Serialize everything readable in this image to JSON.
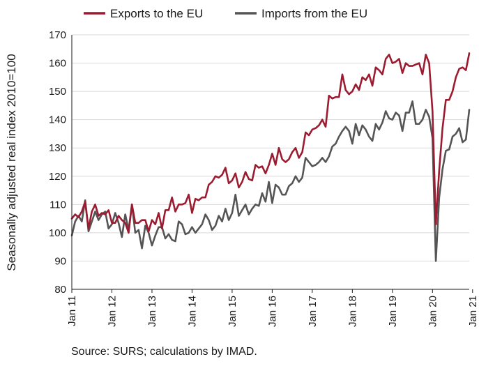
{
  "chart_data": {
    "type": "line",
    "ylabel": "Seasonally adjusted real index 2010=100",
    "xlabel": "",
    "ylim": [
      80,
      170
    ],
    "yticks": [
      80,
      90,
      100,
      110,
      120,
      130,
      140,
      150,
      160,
      170
    ],
    "x_tick_labels": [
      "Jan 11",
      "Jan 12",
      "Jan 13",
      "Jan 14",
      "Jan 15",
      "Jan 16",
      "Jan 17",
      "Jan 18",
      "Jan 19",
      "Jan 20",
      "Jan 21"
    ],
    "x_start": "2011-01",
    "frequency": "monthly",
    "legend_position": "top",
    "series": [
      {
        "name": "Exports to the EU",
        "color": "#9b1c31",
        "values": [
          105,
          106.5,
          105.5,
          107.5,
          111,
          101.5,
          107.5,
          110,
          106,
          107,
          106.5,
          108,
          103.5,
          103.5,
          106,
          104.5,
          103.5,
          100,
          110,
          103.5,
          103.5,
          104.5,
          104.5,
          100.5,
          104.5,
          103,
          107,
          101.5,
          108,
          108,
          112.5,
          107.5,
          110,
          110,
          110.5,
          113.5,
          107,
          112,
          111.5,
          112.5,
          112.5,
          117,
          118,
          120,
          119.5,
          120.5,
          123,
          117.5,
          118.5,
          121,
          116,
          118,
          121.5,
          119,
          118.5,
          124,
          123,
          123.5,
          121,
          124,
          128,
          124,
          130,
          126,
          125,
          126,
          128.5,
          130,
          126.5,
          128.5,
          135.5,
          134.5,
          136.5,
          137,
          138,
          140,
          137.5,
          148.5,
          147.5,
          148,
          148,
          156,
          150.5,
          149,
          150,
          152.5,
          150.5,
          155,
          154,
          156,
          152,
          158.5,
          157.5,
          156,
          161.5,
          163,
          160,
          160.5,
          161.5,
          156.5,
          160,
          159,
          159,
          159.5,
          160,
          156,
          163,
          160,
          143,
          103,
          122,
          137,
          147,
          147,
          150,
          155,
          158,
          158.5,
          157.5,
          163.5
        ]
      },
      {
        "name": "Imports from the EU",
        "color": "#555555",
        "values": [
          99,
          104,
          106,
          104,
          111.5,
          100.5,
          104,
          107.5,
          104.5,
          106.5,
          107.5,
          101.5,
          103,
          107,
          103.5,
          98.5,
          106.5,
          101,
          110,
          100,
          101,
          94.5,
          102.5,
          100,
          95.5,
          99,
          102,
          102,
          98,
          99.5,
          97.5,
          97,
          104,
          103,
          99.5,
          100,
          102,
          100,
          101.5,
          103,
          106.5,
          104.5,
          101,
          102.5,
          106,
          104,
          108.5,
          104.5,
          107,
          113.5,
          106,
          108,
          110,
          106.5,
          108.5,
          110,
          109.5,
          114,
          111,
          118,
          110.5,
          117,
          116,
          113.5,
          113.5,
          116.5,
          117.5,
          120,
          118,
          119.5,
          126.5,
          125,
          123.5,
          124,
          125,
          126.5,
          125,
          127,
          130.5,
          131.5,
          134,
          136,
          137.5,
          136,
          131.5,
          138.5,
          134.5,
          138,
          136.5,
          134,
          132.5,
          138.5,
          136.5,
          139,
          143,
          140.5,
          140,
          142.5,
          141.5,
          136,
          142.5,
          142.5,
          146.5,
          138.5,
          138.5,
          140,
          143.5,
          141,
          133.5,
          90,
          112.5,
          122.5,
          129,
          129.5,
          134,
          135,
          137,
          132,
          133,
          143.5
        ]
      }
    ]
  },
  "source_text": "Source: SURS; calculations by IMAD."
}
